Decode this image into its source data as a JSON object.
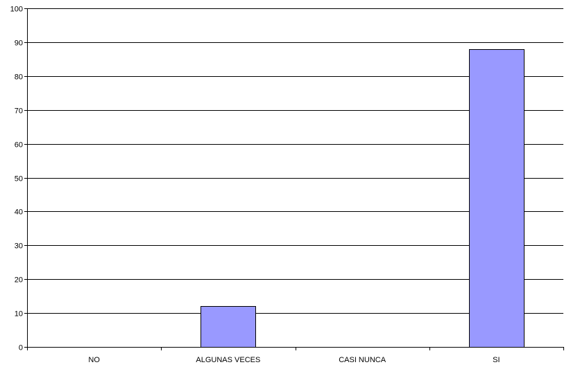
{
  "chart_data": {
    "type": "bar",
    "categories": [
      "NO",
      "ALGUNAS VECES",
      "CASI NUNCA",
      "SI"
    ],
    "values": [
      0,
      12,
      0,
      88
    ],
    "title": "",
    "xlabel": "",
    "ylabel": "",
    "ylim": [
      0,
      100
    ],
    "yticks": [
      0,
      10,
      20,
      30,
      40,
      50,
      60,
      70,
      80,
      90,
      100
    ],
    "grid": true,
    "legend": "none",
    "bar_color": "#9999ff",
    "bar_edge_color": "#000000"
  }
}
